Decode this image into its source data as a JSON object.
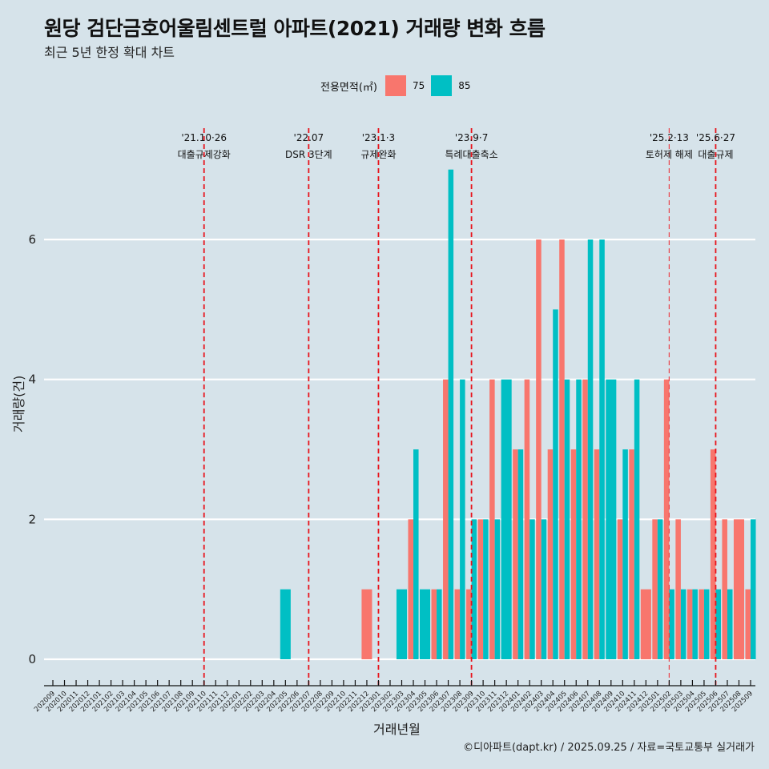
{
  "header": {
    "title": "원당 검단금호어울림센트럴 아파트(2021) 거래량 변화 흐름",
    "subtitle": "최근 5년 한정 확대 차트"
  },
  "legend": {
    "title": "전용면적(㎡)",
    "items": [
      {
        "label": "75",
        "color": "#F8766D"
      },
      {
        "label": "85",
        "color": "#00BFC4"
      }
    ]
  },
  "caption": "©디아파트(dapt.kr) / 2025.09.25 / 자료=국토교통부 실거래가",
  "chart_data": {
    "type": "bar",
    "title": "원당 검단금호어울림센트럴 아파트(2021) 거래량 변화 흐름",
    "subtitle": "최근 5년 한정 확대 차트",
    "xlabel": "거래년월",
    "ylabel": "거래량(건)",
    "ylim": [
      0,
      7
    ],
    "yticks": [
      0,
      2,
      4,
      6
    ],
    "grid": "horizontal",
    "legend_position": "top",
    "categories": [
      "202009",
      "202010",
      "202011",
      "202012",
      "202101",
      "202102",
      "202103",
      "202104",
      "202105",
      "202106",
      "202107",
      "202108",
      "202109",
      "202110",
      "202111",
      "202112",
      "202201",
      "202202",
      "202203",
      "202204",
      "202205",
      "202206",
      "202207",
      "202208",
      "202209",
      "202210",
      "202211",
      "202212",
      "202301",
      "202302",
      "202303",
      "202304",
      "202305",
      "202306",
      "202307",
      "202308",
      "202309",
      "202310",
      "202311",
      "202312",
      "202401",
      "202402",
      "202403",
      "202404",
      "202405",
      "202406",
      "202407",
      "202408",
      "202409",
      "202410",
      "202411",
      "202412",
      "202501",
      "202502",
      "202503",
      "202504",
      "202505",
      "202506",
      "202507",
      "202508",
      "202509"
    ],
    "series": [
      {
        "name": "75",
        "color": "#F8766D",
        "values": [
          0,
          0,
          0,
          0,
          0,
          0,
          0,
          0,
          0,
          0,
          0,
          0,
          0,
          0,
          0,
          0,
          0,
          0,
          0,
          0,
          0,
          0,
          0,
          0,
          0,
          0,
          0,
          1,
          0,
          0,
          0,
          2,
          0,
          1,
          4,
          1,
          1,
          2,
          4,
          0,
          3,
          4,
          6,
          3,
          6,
          3,
          4,
          3,
          0,
          2,
          3,
          1,
          2,
          4,
          2,
          1,
          1,
          3,
          2,
          2,
          1
        ]
      },
      {
        "name": "85",
        "color": "#00BFC4",
        "values": [
          0,
          0,
          0,
          0,
          0,
          0,
          0,
          0,
          0,
          0,
          0,
          0,
          0,
          0,
          0,
          0,
          0,
          0,
          0,
          0,
          1,
          0,
          0,
          0,
          0,
          0,
          0,
          0,
          0,
          0,
          1,
          3,
          1,
          1,
          7,
          4,
          2,
          2,
          2,
          4,
          3,
          2,
          2,
          5,
          4,
          4,
          6,
          6,
          4,
          3,
          4,
          0,
          2,
          1,
          1,
          1,
          1,
          1,
          1,
          0,
          2
        ]
      }
    ],
    "annotations": [
      {
        "month": "202110",
        "date": "'21.10·26",
        "label": "대출규제강화",
        "style": "bold"
      },
      {
        "month": "202207",
        "date": "'22.07",
        "label": "DSR 3단계",
        "style": "bold"
      },
      {
        "month": "202301",
        "date": "'23.1·3",
        "label": "규제완화",
        "style": "bold"
      },
      {
        "month": "202309",
        "date": "'23.9·7",
        "label": "특례대출축소",
        "style": "bold"
      },
      {
        "month": "202502",
        "date": "'25.2·13",
        "label": "토허제 해제",
        "style": "light"
      },
      {
        "month": "202506",
        "date": "'25.6·27",
        "label": "대출규제",
        "style": "bold"
      }
    ]
  }
}
